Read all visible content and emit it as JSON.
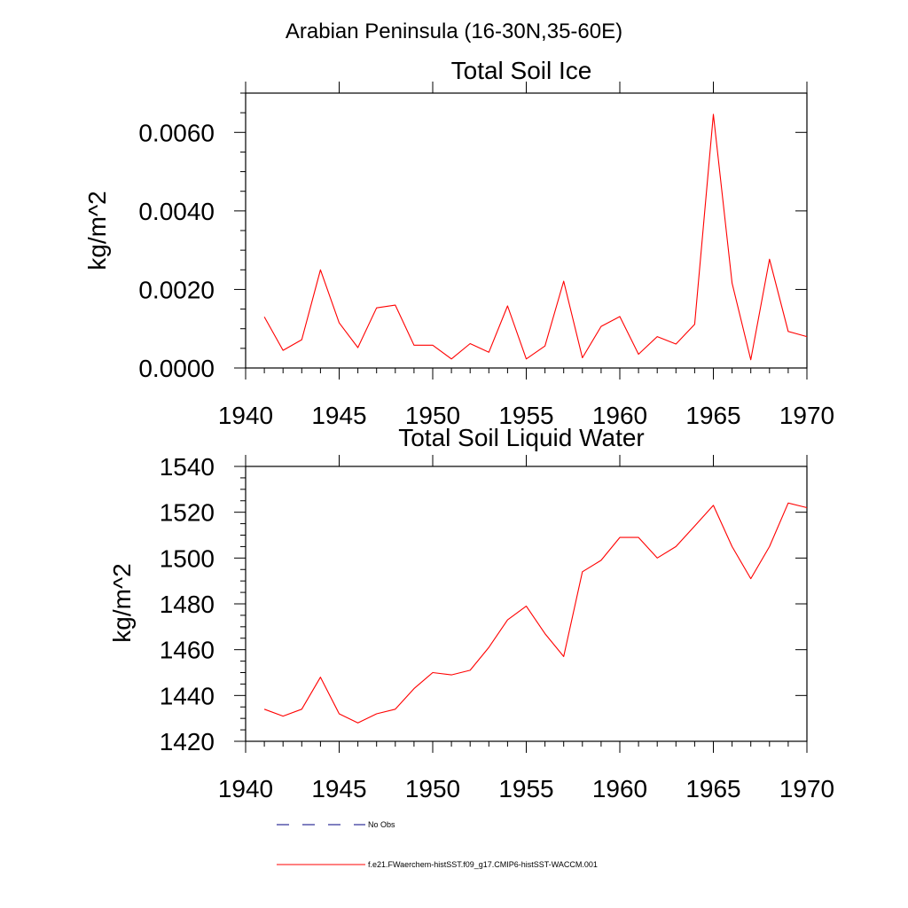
{
  "suptitle": "Arabian Peninsula (16-30N,35-60E)",
  "chart_data": [
    {
      "type": "line",
      "title": "Total Soil Ice",
      "xlabel": "",
      "ylabel": "kg/m^2",
      "xlim": [
        1940,
        1970
      ],
      "ylim": [
        0,
        0.007
      ],
      "xticks": [
        1940,
        1945,
        1950,
        1955,
        1960,
        1965,
        1970
      ],
      "xtick_labels": [
        "1940",
        "1945",
        "1950",
        "1955",
        "1960",
        "1965",
        "1970"
      ],
      "yticks": [
        0,
        0.002,
        0.004,
        0.006
      ],
      "ytick_labels": [
        "0.0000",
        "0.0020",
        "0.0040",
        "0.0060"
      ],
      "x": [
        1941,
        1942,
        1943,
        1944,
        1945,
        1946,
        1947,
        1948,
        1949,
        1950,
        1951,
        1952,
        1953,
        1954,
        1955,
        1956,
        1957,
        1958,
        1959,
        1960,
        1961,
        1962,
        1963,
        1964,
        1965,
        1966,
        1967,
        1968,
        1969,
        1970
      ],
      "series": [
        {
          "name": "f.e21.FWaerchem-histSST.f09_g17.CMIP6-histSST-WACCM.001",
          "color": "#ff0000",
          "values": [
            0.0013,
            0.00045,
            0.00072,
            0.0025,
            0.00115,
            0.00052,
            0.00153,
            0.0016,
            0.00058,
            0.00058,
            0.00023,
            0.00062,
            0.0004,
            0.00158,
            0.00023,
            0.00056,
            0.00221,
            0.00026,
            0.00106,
            0.00131,
            0.00035,
            0.0008,
            0.00061,
            0.00111,
            0.00646,
            0.00216,
            0.00021,
            0.00277,
            0.00093,
            0.0008
          ]
        }
      ]
    },
    {
      "type": "line",
      "title": "Total Soil Liquid Water",
      "xlabel": "",
      "ylabel": "kg/m^2",
      "xlim": [
        1940,
        1970
      ],
      "ylim": [
        1420,
        1540
      ],
      "xticks": [
        1940,
        1945,
        1950,
        1955,
        1960,
        1965,
        1970
      ],
      "xtick_labels": [
        "1940",
        "1945",
        "1950",
        "1955",
        "1960",
        "1965",
        "1970"
      ],
      "yticks": [
        1420,
        1440,
        1460,
        1480,
        1500,
        1520,
        1540
      ],
      "ytick_labels": [
        "1420",
        "1440",
        "1460",
        "1480",
        "1500",
        "1520",
        "1540"
      ],
      "x": [
        1941,
        1942,
        1943,
        1944,
        1945,
        1946,
        1947,
        1948,
        1949,
        1950,
        1951,
        1952,
        1953,
        1954,
        1955,
        1956,
        1957,
        1958,
        1959,
        1960,
        1961,
        1962,
        1963,
        1964,
        1965,
        1966,
        1967,
        1968,
        1969,
        1970
      ],
      "series": [
        {
          "name": "f.e21.FWaerchem-histSST.f09_g17.CMIP6-histSST-WACCM.001",
          "color": "#ff0000",
          "values": [
            1434,
            1431,
            1434,
            1448,
            1432,
            1428,
            1432,
            1434,
            1443,
            1450,
            1449,
            1451,
            1461,
            1473,
            1479,
            1467,
            1457,
            1494,
            1499,
            1509,
            1509,
            1500,
            1505,
            1514,
            1523,
            1505,
            1491,
            1505,
            1524,
            1522
          ]
        }
      ]
    }
  ],
  "legend": {
    "items": [
      {
        "label": "No Obs",
        "color": "#000080",
        "style": "dashed"
      },
      {
        "label": "f.e21.FWaerchem-histSST.f09_g17.CMIP6-histSST-WACCM.001",
        "color": "#ff0000",
        "style": "solid"
      }
    ]
  }
}
